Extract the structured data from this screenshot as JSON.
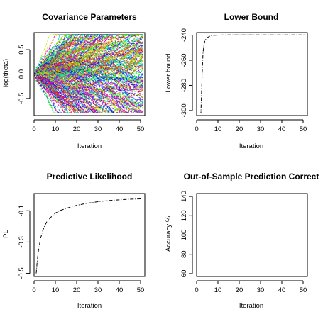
{
  "chart_data": [
    {
      "type": "line",
      "title": "Covariance Parameters",
      "xlabel": "Iteration",
      "ylabel": "log(theta)",
      "xlim": [
        0,
        52
      ],
      "ylim": [
        -0.85,
        0.85
      ],
      "xticks": [
        0,
        10,
        20,
        30,
        40,
        50
      ],
      "yticks": [
        -0.5,
        0.0,
        0.5
      ],
      "ytick_labels": [
        "-0.5",
        "0.0",
        "0.5"
      ],
      "series_count": 300,
      "series_description": "many colored dashed trajectories fanning out from 0",
      "spread_at_iteration_50": [
        -0.65,
        0.65
      ],
      "x_start": 0,
      "x_end": 51,
      "grid": false
    },
    {
      "type": "line",
      "title": "Lower Bound",
      "xlabel": "Iteration",
      "ylabel": "Lower bound",
      "xlim": [
        0,
        52
      ],
      "ylim": [
        -304,
        -238
      ],
      "xticks": [
        0,
        10,
        20,
        30,
        40,
        50
      ],
      "yticks": [
        -300,
        -280,
        -260,
        -240
      ],
      "series": [
        {
          "x": [
            1,
            2,
            2.5,
            3,
            3.5,
            4,
            5,
            6,
            7,
            8,
            10,
            12,
            15,
            20,
            25,
            30,
            35,
            40,
            45,
            50,
            51
          ],
          "values": [
            -302,
            -302,
            -275,
            -254,
            -247,
            -244,
            -242,
            -241,
            -240.5,
            -240.2,
            -240,
            -239.9,
            -239.8,
            -239.8,
            -239.8,
            -239.8,
            -239.8,
            -239.8,
            -239.8,
            -239.8,
            -239.8
          ]
        }
      ],
      "grid": false
    },
    {
      "type": "line",
      "title": "Predictive Likelihood",
      "xlabel": "Iteration",
      "ylabel": "PL",
      "xlim": [
        0,
        52
      ],
      "ylim": [
        -0.52,
        0.01
      ],
      "xticks": [
        0,
        10,
        20,
        30,
        40,
        50
      ],
      "yticks": [
        -0.5,
        -0.3,
        -0.1
      ],
      "series": [
        {
          "x": [
            1,
            1.5,
            2,
            3,
            4,
            5,
            6,
            8,
            10,
            12,
            15,
            20,
            25,
            30,
            35,
            40,
            45,
            50
          ],
          "values": [
            -0.5,
            -0.42,
            -0.36,
            -0.28,
            -0.23,
            -0.195,
            -0.17,
            -0.14,
            -0.115,
            -0.1,
            -0.085,
            -0.065,
            -0.052,
            -0.042,
            -0.035,
            -0.03,
            -0.026,
            -0.024
          ]
        }
      ],
      "grid": false
    },
    {
      "type": "line",
      "title": "Out-of-Sample Prediction Correct",
      "xlabel": "Iteration",
      "ylabel": "Accuracy %",
      "xlim": [
        0,
        52
      ],
      "ylim": [
        57,
        143
      ],
      "xticks": [
        0,
        10,
        20,
        30,
        40,
        50
      ],
      "yticks": [
        60,
        80,
        100,
        120,
        140
      ],
      "series": [
        {
          "x": [
            0,
            50
          ],
          "values": [
            100,
            100
          ]
        }
      ],
      "grid": false
    }
  ]
}
